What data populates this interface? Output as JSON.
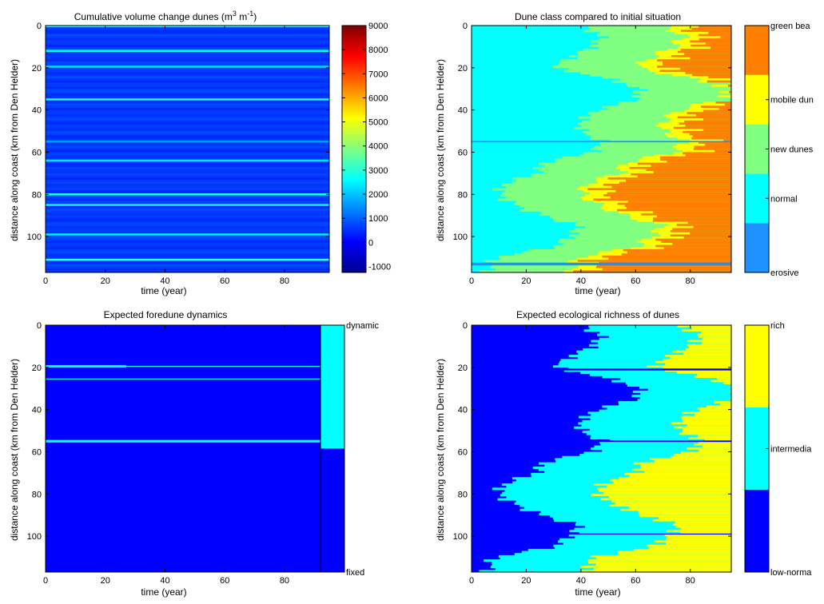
{
  "chart_data": [
    {
      "type": "heatmap",
      "title": "Cumulative volume change dunes (m³ m⁻¹)",
      "title_parts": {
        "main": "Cumulative volume change dunes (m",
        "sup1": "3",
        "mid": " m",
        "sup2": "-1",
        "end": ")"
      },
      "xlabel": "time (year)",
      "ylabel": "distance along coast (km from Den Helder)",
      "xlim": [
        0,
        95
      ],
      "ylim": [
        0,
        117
      ],
      "y_reversed": true,
      "xticks": [
        "0",
        "20",
        "40",
        "60",
        "80"
      ],
      "yticks": [
        "0",
        "20",
        "40",
        "60",
        "80",
        "100"
      ],
      "colorbar": {
        "type": "continuous",
        "range": [
          -1250,
          9000
        ],
        "ticks": [
          "9000",
          "8000",
          "7000",
          "6000",
          "5000",
          "4000",
          "3000",
          "2000",
          "1000",
          "0",
          "-1000"
        ]
      },
      "background_value": 600,
      "stripes": [
        {
          "y": 0.3,
          "value": 2800
        },
        {
          "y": 12,
          "value": 2600
        },
        {
          "y": 19.5,
          "value": 2200
        },
        {
          "y": 35,
          "value": 2700
        },
        {
          "y": 55,
          "value": 1600
        },
        {
          "y": 64,
          "value": 2300
        },
        {
          "y": 80,
          "value": 2800
        },
        {
          "y": 85,
          "value": 2500
        },
        {
          "y": 99,
          "value": 2400
        },
        {
          "y": 111,
          "value": 3000
        }
      ]
    },
    {
      "type": "heatmap",
      "title": "Dune class compared to initial situation",
      "xlabel": "time (year)",
      "ylabel": "distance along coast (km from Den Helder)",
      "xlim": [
        0,
        95
      ],
      "ylim": [
        0,
        117
      ],
      "y_reversed": true,
      "xticks": [
        "0",
        "20",
        "40",
        "60",
        "80"
      ],
      "yticks": [
        "0",
        "20",
        "40",
        "60",
        "80",
        "100"
      ],
      "colorbar": {
        "type": "categorical",
        "classes": [
          {
            "label": "erosive",
            "color": "#1e90ff"
          },
          {
            "label": "normal",
            "color": "#00ffff"
          },
          {
            "label": "new dunes",
            "color": "#80ff80"
          },
          {
            "label": "mobile dun",
            "color": "#ffff00"
          },
          {
            "label": "green bea",
            "color": "#ff8000"
          }
        ]
      },
      "profile_points": [
        [
          0,
          40
        ],
        [
          5,
          48
        ],
        [
          10,
          44
        ],
        [
          15,
          36
        ],
        [
          20,
          30
        ],
        [
          25,
          50
        ],
        [
          30,
          62
        ],
        [
          35,
          60
        ],
        [
          40,
          46
        ],
        [
          45,
          40
        ],
        [
          50,
          40
        ],
        [
          55,
          48
        ],
        [
          60,
          44
        ],
        [
          65,
          26
        ],
        [
          70,
          24
        ],
        [
          75,
          12
        ],
        [
          80,
          10
        ],
        [
          85,
          16
        ],
        [
          90,
          26
        ],
        [
          95,
          40
        ],
        [
          100,
          36
        ],
        [
          105,
          30
        ],
        [
          110,
          8
        ],
        [
          117,
          6
        ]
      ],
      "class_offsets_years": {
        "mobile dun": 30,
        "green bea": 38
      }
    },
    {
      "type": "heatmap",
      "title": "Expected foredune dynamics",
      "xlabel": "time (year)",
      "ylabel": "distance along coast (km from Den Helder)",
      "xlim": [
        0,
        95
      ],
      "ylim": [
        0,
        117
      ],
      "y_reversed": true,
      "xticks": [
        "0",
        "20",
        "40",
        "60",
        "80"
      ],
      "yticks": [
        "0",
        "20",
        "40",
        "60",
        "80",
        "100"
      ],
      "colorbar": {
        "type": "categorical",
        "classes": [
          {
            "label": "fixed",
            "color": "#0000ff"
          },
          {
            "label": "dynamic",
            "color": "#00ffff"
          }
        ]
      },
      "background_class": "fixed",
      "dynamic_lines": [
        {
          "y": 19.5,
          "x_end": 95,
          "thick_until": 27
        },
        {
          "y": 25.5,
          "x_end": 95,
          "thick_until": 0
        },
        {
          "y": 55,
          "x_end": 95,
          "thick_until": 95
        }
      ]
    },
    {
      "type": "heatmap",
      "title": "Expected ecological richness of dunes",
      "xlabel": "time (year)",
      "ylabel": "distance along coast (km from Den Helder)",
      "xlim": [
        0,
        95
      ],
      "ylim": [
        0,
        117
      ],
      "y_reversed": true,
      "xticks": [
        "0",
        "20",
        "40",
        "60",
        "80"
      ],
      "yticks": [
        "0",
        "20",
        "40",
        "60",
        "80",
        "100"
      ],
      "colorbar": {
        "type": "categorical",
        "classes": [
          {
            "label": "low-norma",
            "color": "#0000ff"
          },
          {
            "label": "intermedia",
            "color": "#00ffff"
          },
          {
            "label": "rich",
            "color": "#ffff00"
          }
        ]
      },
      "profile_points": [
        [
          0,
          40
        ],
        [
          5,
          48
        ],
        [
          10,
          44
        ],
        [
          15,
          36
        ],
        [
          20,
          30
        ],
        [
          25,
          50
        ],
        [
          30,
          62
        ],
        [
          35,
          60
        ],
        [
          40,
          46
        ],
        [
          45,
          40
        ],
        [
          50,
          40
        ],
        [
          55,
          48
        ],
        [
          60,
          44
        ],
        [
          65,
          26
        ],
        [
          70,
          24
        ],
        [
          75,
          12
        ],
        [
          80,
          10
        ],
        [
          85,
          16
        ],
        [
          90,
          26
        ],
        [
          95,
          40
        ],
        [
          100,
          36
        ],
        [
          105,
          30
        ],
        [
          110,
          8
        ],
        [
          117,
          6
        ]
      ],
      "class_offsets_years": {
        "rich": 36
      }
    }
  ]
}
